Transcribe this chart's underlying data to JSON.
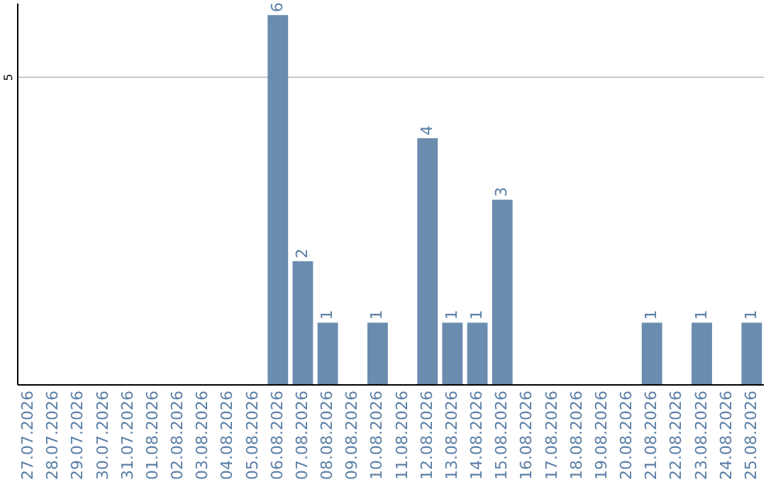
{
  "chart_data": {
    "type": "bar",
    "categories": [
      "27.07.2026",
      "28.07.2026",
      "29.07.2026",
      "30.07.2026",
      "31.07.2026",
      "01.08.2026",
      "02.08.2026",
      "03.08.2026",
      "04.08.2026",
      "05.08.2026",
      "06.08.2026",
      "07.08.2026",
      "08.08.2026",
      "09.08.2026",
      "10.08.2026",
      "11.08.2026",
      "12.08.2026",
      "13.08.2026",
      "14.08.2026",
      "15.08.2026",
      "16.08.2026",
      "17.08.2026",
      "18.08.2026",
      "19.08.2026",
      "20.08.2026",
      "21.08.2026",
      "22.08.2026",
      "23.08.2026",
      "24.08.2026",
      "25.08.2026"
    ],
    "values": [
      0,
      0,
      0,
      0,
      0,
      0,
      0,
      0,
      0,
      0,
      6,
      2,
      1,
      0,
      1,
      0,
      4,
      1,
      1,
      3,
      0,
      0,
      0,
      0,
      0,
      1,
      0,
      1,
      0,
      1
    ],
    "value_labels": [
      null,
      null,
      null,
      null,
      null,
      null,
      null,
      null,
      null,
      null,
      "6",
      "2",
      "1",
      null,
      "1",
      null,
      "4",
      "1",
      "1",
      "3",
      null,
      null,
      null,
      null,
      null,
      "1",
      null,
      "1",
      null,
      "1"
    ],
    "color": "#6a8caf",
    "ylim": [
      0,
      6.2
    ],
    "yticks": [
      5
    ],
    "grid": "y"
  }
}
